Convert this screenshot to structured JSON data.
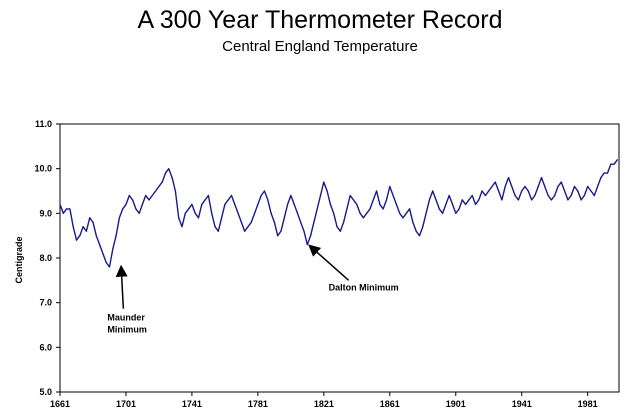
{
  "chart_data": {
    "type": "line",
    "title": "A 300 Year Thermometer Record",
    "subtitle": "Central England Temperature",
    "xlabel": "",
    "ylabel": "Centigrade",
    "xlim": [
      1661,
      2000
    ],
    "ylim": [
      5.0,
      11.0
    ],
    "x_ticks": [
      1661,
      1701,
      1741,
      1781,
      1821,
      1861,
      1901,
      1941,
      1981
    ],
    "y_ticks": [
      "5.0",
      "6.0",
      "7.0",
      "8.0",
      "9.0",
      "10.0",
      "11.0"
    ],
    "grid": false,
    "line_color": "#1a1a8c",
    "series": [
      {
        "name": "Central England Temperature",
        "x": [
          1661,
          1663,
          1665,
          1667,
          1669,
          1671,
          1673,
          1675,
          1677,
          1679,
          1681,
          1683,
          1685,
          1687,
          1689,
          1691,
          1693,
          1695,
          1697,
          1699,
          1701,
          1703,
          1705,
          1707,
          1709,
          1711,
          1713,
          1715,
          1717,
          1719,
          1721,
          1723,
          1725,
          1727,
          1729,
          1731,
          1733,
          1735,
          1737,
          1739,
          1741,
          1743,
          1745,
          1747,
          1749,
          1751,
          1753,
          1755,
          1757,
          1759,
          1761,
          1763,
          1765,
          1767,
          1769,
          1771,
          1773,
          1775,
          1777,
          1779,
          1781,
          1783,
          1785,
          1787,
          1789,
          1791,
          1793,
          1795,
          1797,
          1799,
          1801,
          1803,
          1805,
          1807,
          1809,
          1811,
          1813,
          1815,
          1817,
          1819,
          1821,
          1823,
          1825,
          1827,
          1829,
          1831,
          1833,
          1835,
          1837,
          1839,
          1841,
          1843,
          1845,
          1847,
          1849,
          1851,
          1853,
          1855,
          1857,
          1859,
          1861,
          1863,
          1865,
          1867,
          1869,
          1871,
          1873,
          1875,
          1877,
          1879,
          1881,
          1883,
          1885,
          1887,
          1889,
          1891,
          1893,
          1895,
          1897,
          1899,
          1901,
          1903,
          1905,
          1907,
          1909,
          1911,
          1913,
          1915,
          1917,
          1919,
          1921,
          1923,
          1925,
          1927,
          1929,
          1931,
          1933,
          1935,
          1937,
          1939,
          1941,
          1943,
          1945,
          1947,
          1949,
          1951,
          1953,
          1955,
          1957,
          1959,
          1961,
          1963,
          1965,
          1967,
          1969,
          1971,
          1973,
          1975,
          1977,
          1979,
          1981,
          1983,
          1985,
          1987,
          1989,
          1991,
          1993,
          1995,
          1997,
          1999
        ],
        "values": [
          9.2,
          9.0,
          9.1,
          9.1,
          8.7,
          8.4,
          8.5,
          8.7,
          8.6,
          8.9,
          8.8,
          8.5,
          8.3,
          8.1,
          7.9,
          7.8,
          8.2,
          8.5,
          8.9,
          9.1,
          9.2,
          9.4,
          9.3,
          9.1,
          9.0,
          9.2,
          9.4,
          9.3,
          9.4,
          9.5,
          9.6,
          9.7,
          9.9,
          10.0,
          9.8,
          9.5,
          8.9,
          8.7,
          9.0,
          9.1,
          9.2,
          9.0,
          8.9,
          9.2,
          9.3,
          9.4,
          9.0,
          8.7,
          8.6,
          8.9,
          9.2,
          9.3,
          9.4,
          9.2,
          9.0,
          8.8,
          8.6,
          8.7,
          8.8,
          9.0,
          9.2,
          9.4,
          9.5,
          9.3,
          9.0,
          8.8,
          8.5,
          8.6,
          8.9,
          9.2,
          9.4,
          9.2,
          9.0,
          8.8,
          8.6,
          8.3,
          8.5,
          8.8,
          9.1,
          9.4,
          9.7,
          9.5,
          9.2,
          9.0,
          8.7,
          8.6,
          8.8,
          9.1,
          9.4,
          9.3,
          9.2,
          9.0,
          8.9,
          9.0,
          9.1,
          9.3,
          9.5,
          9.2,
          9.1,
          9.3,
          9.6,
          9.4,
          9.2,
          9.0,
          8.9,
          9.0,
          9.1,
          8.8,
          8.6,
          8.5,
          8.7,
          9.0,
          9.3,
          9.5,
          9.3,
          9.1,
          9.0,
          9.2,
          9.4,
          9.2,
          9.0,
          9.1,
          9.3,
          9.2,
          9.3,
          9.4,
          9.2,
          9.3,
          9.5,
          9.4,
          9.5,
          9.6,
          9.7,
          9.5,
          9.3,
          9.6,
          9.8,
          9.6,
          9.4,
          9.3,
          9.5,
          9.6,
          9.5,
          9.3,
          9.4,
          9.6,
          9.8,
          9.6,
          9.4,
          9.3,
          9.4,
          9.6,
          9.7,
          9.5,
          9.3,
          9.4,
          9.6,
          9.5,
          9.3,
          9.4,
          9.6,
          9.5,
          9.4,
          9.6,
          9.8,
          9.9,
          9.9,
          10.1,
          10.1,
          10.2
        ]
      }
    ],
    "annotations": [
      {
        "lines": [
          "Maunder",
          "Minimum"
        ],
        "x": 1697,
        "y": 7.85
      },
      {
        "lines": [
          "Dalton Minimum"
        ],
        "x": 1813,
        "y": 8.35
      }
    ]
  }
}
